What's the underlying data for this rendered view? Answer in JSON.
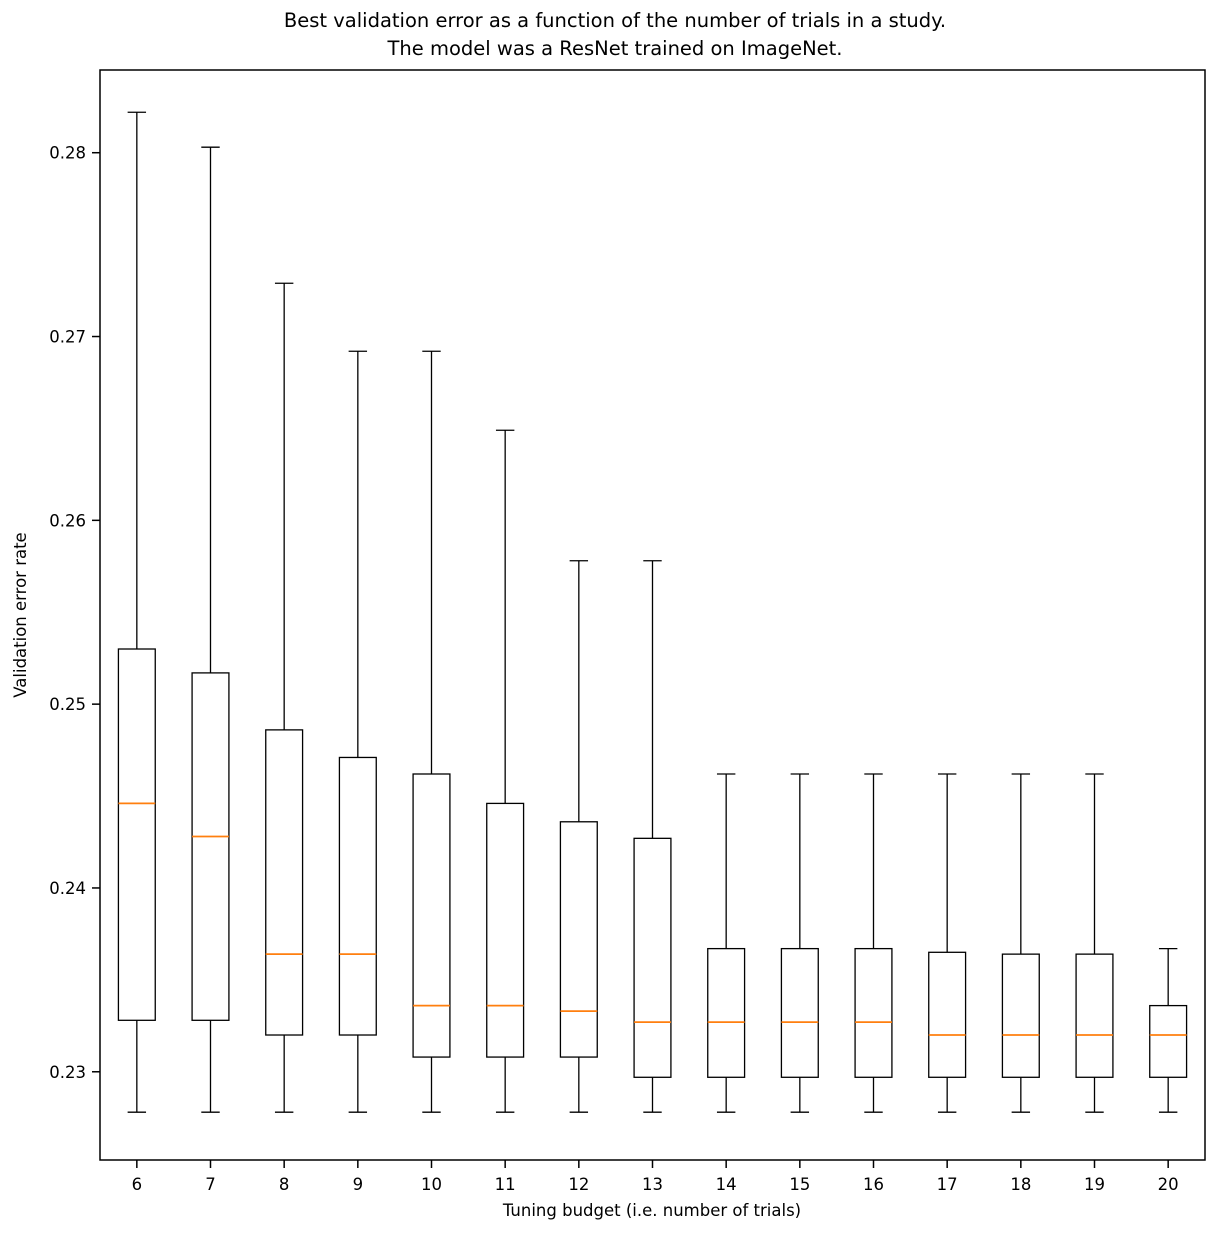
{
  "chart_data": {
    "type": "boxplot",
    "title_line1": "Best validation error as a function of the number of trials in a study.",
    "title_line2": "The model was a ResNet trained on ImageNet.",
    "xlabel": "Tuning budget (i.e. number of trials)",
    "ylabel": "Validation error rate",
    "categories": [
      "6",
      "7",
      "8",
      "9",
      "10",
      "11",
      "12",
      "13",
      "14",
      "15",
      "16",
      "17",
      "18",
      "19",
      "20"
    ],
    "ylim": [
      0.2252,
      0.2845
    ],
    "yticks": [
      {
        "value": 0.23,
        "label": "0.23"
      },
      {
        "value": 0.24,
        "label": "0.24"
      },
      {
        "value": 0.25,
        "label": "0.25"
      },
      {
        "value": 0.26,
        "label": "0.26"
      },
      {
        "value": 0.27,
        "label": "0.27"
      },
      {
        "value": 0.28,
        "label": "0.28"
      }
    ],
    "grid": false,
    "legend": "none",
    "box_color": "#000000",
    "median_color": "#ff7f0e",
    "boxes": [
      {
        "category": "6",
        "whislo": 0.2278,
        "q1": 0.2328,
        "med": 0.2446,
        "q3": 0.253,
        "whishi": 0.2822
      },
      {
        "category": "7",
        "whislo": 0.2278,
        "q1": 0.2328,
        "med": 0.2428,
        "q3": 0.2517,
        "whishi": 0.2803
      },
      {
        "category": "8",
        "whislo": 0.2278,
        "q1": 0.232,
        "med": 0.2364,
        "q3": 0.2486,
        "whishi": 0.2729
      },
      {
        "category": "9",
        "whislo": 0.2278,
        "q1": 0.232,
        "med": 0.2364,
        "q3": 0.2471,
        "whishi": 0.2692
      },
      {
        "category": "10",
        "whislo": 0.2278,
        "q1": 0.2308,
        "med": 0.2336,
        "q3": 0.2462,
        "whishi": 0.2692
      },
      {
        "category": "11",
        "whislo": 0.2278,
        "q1": 0.2308,
        "med": 0.2336,
        "q3": 0.2446,
        "whishi": 0.2649
      },
      {
        "category": "12",
        "whislo": 0.2278,
        "q1": 0.2308,
        "med": 0.2333,
        "q3": 0.2436,
        "whishi": 0.2578
      },
      {
        "category": "13",
        "whislo": 0.2278,
        "q1": 0.2297,
        "med": 0.2327,
        "q3": 0.2427,
        "whishi": 0.2578
      },
      {
        "category": "14",
        "whislo": 0.2278,
        "q1": 0.2297,
        "med": 0.2327,
        "q3": 0.2367,
        "whishi": 0.2462
      },
      {
        "category": "15",
        "whislo": 0.2278,
        "q1": 0.2297,
        "med": 0.2327,
        "q3": 0.2367,
        "whishi": 0.2462
      },
      {
        "category": "16",
        "whislo": 0.2278,
        "q1": 0.2297,
        "med": 0.2327,
        "q3": 0.2367,
        "whishi": 0.2462
      },
      {
        "category": "17",
        "whislo": 0.2278,
        "q1": 0.2297,
        "med": 0.232,
        "q3": 0.2365,
        "whishi": 0.2462
      },
      {
        "category": "18",
        "whislo": 0.2278,
        "q1": 0.2297,
        "med": 0.232,
        "q3": 0.2364,
        "whishi": 0.2462
      },
      {
        "category": "19",
        "whislo": 0.2278,
        "q1": 0.2297,
        "med": 0.232,
        "q3": 0.2364,
        "whishi": 0.2462
      },
      {
        "category": "20",
        "whislo": 0.2278,
        "q1": 0.2297,
        "med": 0.232,
        "q3": 0.2336,
        "whishi": 0.2367
      }
    ]
  }
}
